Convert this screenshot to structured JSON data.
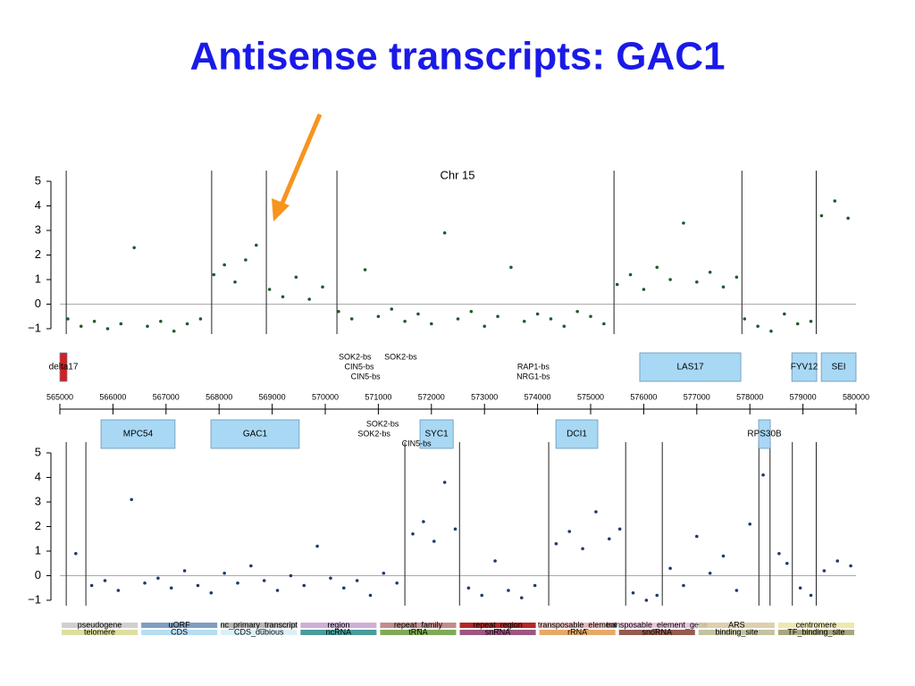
{
  "title": "Antisense transcripts: GAC1",
  "chart_data": [
    {
      "type": "scatter",
      "title": "Chr 15",
      "color": "#1f5a2a",
      "xlim": [
        565000,
        580000
      ],
      "xticks": [
        565000,
        566000,
        567000,
        568000,
        569000,
        570000,
        571000,
        572000,
        573000,
        574000,
        575000,
        576000,
        577000,
        578000,
        579000,
        580000
      ],
      "ylim": [
        -1,
        5
      ],
      "yticks": [
        {
          "value": -1,
          "label": "−1"
        },
        0,
        1,
        2,
        3,
        4,
        5
      ],
      "reference_line": 0,
      "breakpoints": [
        565120,
        567860,
        568890,
        570220,
        575440,
        577850,
        579250
      ],
      "x": [
        565150,
        565400,
        565650,
        565900,
        566150,
        566400,
        566650,
        566900,
        567150,
        567400,
        567650,
        567900,
        568100,
        568300,
        568500,
        568700,
        568950,
        569200,
        569450,
        569700,
        569950,
        570250,
        570500,
        570750,
        571000,
        571250,
        571500,
        571750,
        572000,
        572250,
        572500,
        572750,
        573000,
        573250,
        573500,
        573750,
        574000,
        574250,
        574500,
        574750,
        575000,
        575250,
        575500,
        575750,
        576000,
        576250,
        576500,
        576750,
        577000,
        577250,
        577500,
        577750,
        577900,
        578150,
        578400,
        578650,
        578900,
        579150,
        579350,
        579600,
        579850
      ],
      "values": [
        -0.6,
        -0.9,
        -0.7,
        -1.0,
        -0.8,
        2.3,
        -0.9,
        -0.7,
        -1.1,
        -0.8,
        -0.6,
        1.2,
        1.6,
        0.9,
        1.8,
        2.4,
        0.6,
        0.3,
        1.1,
        0.2,
        0.7,
        -0.3,
        -0.6,
        1.4,
        -0.5,
        -0.2,
        -0.7,
        -0.4,
        -0.8,
        2.9,
        -0.6,
        -0.3,
        -0.9,
        -0.5,
        1.5,
        -0.7,
        -0.4,
        -0.6,
        -0.9,
        -0.3,
        -0.5,
        -0.8,
        0.8,
        1.2,
        0.6,
        1.5,
        1.0,
        3.3,
        0.9,
        1.3,
        0.7,
        1.1,
        -0.6,
        -0.9,
        -1.1,
        -0.4,
        -0.8,
        -0.7,
        3.6,
        4.2,
        3.5
      ]
    },
    {
      "type": "scatter",
      "color": "#1f3a6a",
      "xlim": [
        565000,
        580000
      ],
      "ylim": [
        -1,
        5
      ],
      "yticks": [
        {
          "value": -1,
          "label": "−1"
        },
        0,
        1,
        2,
        3,
        4,
        5
      ],
      "reference_line": 0,
      "breakpoints": [
        565120,
        565490,
        571500,
        572530,
        574210,
        575660,
        576350,
        578170,
        578380,
        578800,
        579250
      ],
      "x": [
        565300,
        565600,
        565850,
        566100,
        566350,
        566600,
        566850,
        567100,
        567350,
        567600,
        567850,
        568100,
        568350,
        568600,
        568850,
        569100,
        569350,
        569600,
        569850,
        570100,
        570350,
        570600,
        570850,
        571100,
        571350,
        571650,
        571850,
        572050,
        572250,
        572450,
        572700,
        572950,
        573200,
        573450,
        573700,
        573950,
        574350,
        574600,
        574850,
        575100,
        575350,
        575550,
        575800,
        576050,
        576250,
        576500,
        576750,
        577000,
        577250,
        577500,
        577750,
        578000,
        578250,
        578550,
        578700,
        578950,
        579150,
        579400,
        579650,
        579900
      ],
      "values": [
        0.9,
        -0.4,
        -0.2,
        -0.6,
        3.1,
        -0.3,
        -0.1,
        -0.5,
        0.2,
        -0.4,
        -0.7,
        0.1,
        -0.3,
        0.4,
        -0.2,
        -0.6,
        0.0,
        -0.4,
        1.2,
        -0.1,
        -0.5,
        -0.2,
        -0.8,
        0.1,
        -0.3,
        1.7,
        2.2,
        1.4,
        3.8,
        1.9,
        -0.5,
        -0.8,
        0.6,
        -0.6,
        -0.9,
        -0.4,
        1.3,
        1.8,
        1.1,
        2.6,
        1.5,
        1.9,
        -0.7,
        -1.0,
        -0.8,
        0.3,
        -0.4,
        1.6,
        0.1,
        0.8,
        -0.6,
        2.1,
        4.1,
        0.9,
        0.5,
        -0.5,
        -0.8,
        0.2,
        0.6,
        0.4
      ]
    }
  ],
  "features": {
    "upper": [
      {
        "name": "delta17",
        "start": 565000,
        "end": 565135,
        "color": "#d42020"
      },
      {
        "name": "LAS17",
        "start": 575925,
        "end": 577830,
        "color": "#a8d8f4"
      },
      {
        "name": "FYV12",
        "start": 578790,
        "end": 579260,
        "color": "#a8d8f4"
      },
      {
        "name": "SEI",
        "start": 579345,
        "end": 580000,
        "color": "#a8d8f4"
      }
    ],
    "lower": [
      {
        "name": "MPC54",
        "start": 565775,
        "end": 567170,
        "color": "#a8d8f4"
      },
      {
        "name": "GAC1",
        "start": 567845,
        "end": 569510,
        "color": "#a8d8f4"
      },
      {
        "name": "SYC1",
        "start": 571785,
        "end": 572410,
        "color": "#a8d8f4"
      },
      {
        "name": "DCI1",
        "start": 574345,
        "end": 575135,
        "color": "#a8d8f4"
      },
      {
        "name": "RPS30B",
        "start": 578165,
        "end": 578385,
        "color": "#a8d8f4"
      }
    ]
  },
  "sites": {
    "upper": [
      {
        "name": "SOK2-bs",
        "pos": 570560
      },
      {
        "name": "CIN5-bs",
        "pos": 570640
      },
      {
        "name": "CIN5-bs",
        "pos": 570760
      },
      {
        "name": "SOK2-bs",
        "pos": 571420
      },
      {
        "name": "RAP1-bs",
        "pos": 573920
      },
      {
        "name": "NRG1-bs",
        "pos": 573920
      }
    ],
    "lower": [
      {
        "name": "SOK2-bs",
        "pos": 571080
      },
      {
        "name": "SOK2-bs",
        "pos": 570920
      },
      {
        "name": "CIN5-bs",
        "pos": 571720
      }
    ]
  },
  "legend": [
    {
      "name": "pseudogene",
      "color": "#c8c8c8"
    },
    {
      "name": "uORF",
      "color": "#6a8cb8"
    },
    {
      "name": "nc_primary_transcript",
      "color": "#a8a8a8"
    },
    {
      "name": "region",
      "color": "#c8a0d0"
    },
    {
      "name": "repeat_family",
      "color": "#b87878"
    },
    {
      "name": "repeat_region",
      "color": "#a80000"
    },
    {
      "name": "transposable_element",
      "color": "#e8a8a8"
    },
    {
      "name": "transposable_element_gene",
      "color": "#e8b8d8"
    },
    {
      "name": "ARS",
      "color": "#d8c8a0"
    },
    {
      "name": "centromere",
      "color": "#ece4a0"
    },
    {
      "name": "telomere",
      "color": "#d8d890"
    },
    {
      "name": "CDS",
      "color": "#a8d8f0"
    },
    {
      "name": "CDS_dubious",
      "color": "#d4ecf4"
    },
    {
      "name": "ncRNA",
      "color": "#2a8a8a"
    },
    {
      "name": "tRNA",
      "color": "#6a9a3a"
    },
    {
      "name": "snRNA",
      "color": "#8a3a6a"
    },
    {
      "name": "rRNA",
      "color": "#e09a50"
    },
    {
      "name": "snoRNA",
      "color": "#804030"
    },
    {
      "name": "binding_site",
      "color": "#b8b890"
    },
    {
      "name": "TF_binding_site",
      "color": "#989868"
    }
  ]
}
